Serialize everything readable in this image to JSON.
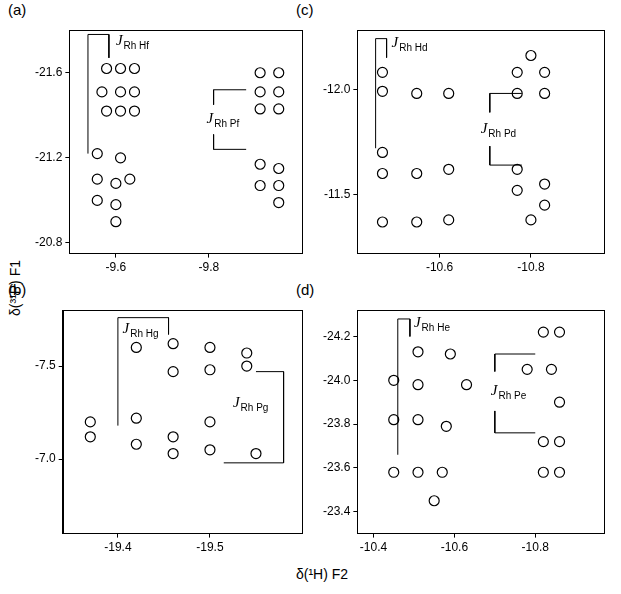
{
  "x_label": "δ(¹H) F2",
  "y_label": "δ(³¹P) F1",
  "chart_data": [
    {
      "type": "scatter",
      "panel": "(a)",
      "color": "#000000",
      "marker": "circle",
      "grid": false,
      "xlim": [
        -9.5,
        -10.0
      ],
      "xticks": [
        -9.6,
        -9.8
      ],
      "ylim": [
        -20.75,
        -21.8
      ],
      "yticks": [
        -21.6,
        -21.2,
        -20.8
      ],
      "values": [
        [
          -9.58,
          -21.62
        ],
        [
          -9.61,
          -21.62
        ],
        [
          -9.64,
          -21.62
        ],
        [
          -9.57,
          -21.51
        ],
        [
          -9.61,
          -21.51
        ],
        [
          -9.64,
          -21.51
        ],
        [
          -9.58,
          -21.42
        ],
        [
          -9.61,
          -21.42
        ],
        [
          -9.64,
          -21.42
        ],
        [
          -9.91,
          -21.6
        ],
        [
          -9.95,
          -21.6
        ],
        [
          -9.91,
          -21.51
        ],
        [
          -9.95,
          -21.51
        ],
        [
          -9.91,
          -21.43
        ],
        [
          -9.95,
          -21.43
        ],
        [
          -9.56,
          -21.22
        ],
        [
          -9.61,
          -21.2
        ],
        [
          -9.56,
          -21.1
        ],
        [
          -9.6,
          -21.08
        ],
        [
          -9.63,
          -21.1
        ],
        [
          -9.56,
          -21.0
        ],
        [
          -9.6,
          -20.98
        ],
        [
          -9.6,
          -20.9
        ],
        [
          -9.91,
          -21.17
        ],
        [
          -9.95,
          -21.15
        ],
        [
          -9.91,
          -21.07
        ],
        [
          -9.95,
          -21.07
        ],
        [
          -9.95,
          -20.99
        ]
      ],
      "brackets": [
        [
          [
            -9.54,
            -21.22
          ],
          [
            -9.54,
            -21.78
          ],
          [
            -9.585,
            -21.78
          ],
          [
            -9.585,
            -21.67
          ]
        ],
        [
          [
            -9.88,
            -21.52
          ],
          [
            -9.81,
            -21.52
          ],
          [
            -9.81,
            -21.45
          ]
        ],
        [
          [
            -9.81,
            -21.31
          ],
          [
            -9.81,
            -21.24
          ],
          [
            -9.88,
            -21.24
          ]
        ]
      ],
      "annotations": [
        {
          "text": "J",
          "subscript": "Rh Hf",
          "x": -9.6,
          "y": -21.75
        },
        {
          "text": "J",
          "subscript": "Rh Pf",
          "x": -9.795,
          "y": -21.38
        }
      ]
    },
    {
      "type": "scatter",
      "panel": "(b)",
      "color": "#000000",
      "marker": "circle",
      "grid": false,
      "xlim": [
        -19.34,
        -19.6
      ],
      "xticks": [
        -19.4,
        -19.5
      ],
      "ylim": [
        -6.6,
        -7.8
      ],
      "yticks": [
        -7.5,
        {
          "value": -7,
          "label": "-7.0"
        }
      ],
      "values": [
        [
          -19.42,
          -7.6
        ],
        [
          -19.46,
          -7.62
        ],
        [
          -19.46,
          -7.47
        ],
        [
          -19.5,
          -7.6
        ],
        [
          -19.5,
          -7.48
        ],
        [
          -19.54,
          -7.57
        ],
        [
          -19.54,
          -7.5
        ],
        [
          -19.37,
          -7.2
        ],
        [
          -19.37,
          -7.12
        ],
        [
          -19.42,
          -7.22
        ],
        [
          -19.42,
          -7.08
        ],
        [
          -19.46,
          -7.12
        ],
        [
          -19.46,
          -7.03
        ],
        [
          -19.5,
          -7.2
        ],
        [
          -19.5,
          -7.05
        ],
        [
          -19.55,
          -7.03
        ]
      ],
      "brackets": [
        [
          [
            -19.4,
            -7.18
          ],
          [
            -19.4,
            -7.76
          ],
          [
            -19.455,
            -7.76
          ],
          [
            -19.455,
            -7.67
          ]
        ],
        [
          [
            -19.55,
            -7.47
          ],
          [
            -19.58,
            -7.47
          ],
          [
            -19.58,
            -6.98
          ],
          [
            -19.515,
            -6.98
          ]
        ]
      ],
      "annotations": [
        {
          "text": "J",
          "subscript": "Rh Hg",
          "x": -19.405,
          "y": -7.7
        },
        {
          "text": "J",
          "subscript": "Rh Pg",
          "x": -19.525,
          "y": -7.3
        }
      ]
    },
    {
      "type": "scatter",
      "panel": "(c)",
      "color": "#000000",
      "marker": "circle",
      "grid": false,
      "xlim": [
        -10.42,
        -10.96
      ],
      "xticks": [
        -10.6,
        -10.8
      ],
      "ylim": [
        -11.22,
        -12.28
      ],
      "yticks": [
        {
          "value": -12,
          "label": "-12.0"
        },
        -11.5
      ],
      "values": [
        [
          -10.475,
          -12.08
        ],
        [
          -10.475,
          -11.99
        ],
        [
          -10.55,
          -11.98
        ],
        [
          -10.62,
          -11.98
        ],
        [
          -10.77,
          -12.08
        ],
        [
          -10.77,
          -11.98
        ],
        [
          -10.83,
          -12.08
        ],
        [
          -10.83,
          -11.98
        ],
        [
          -10.8,
          -12.16
        ],
        [
          -10.475,
          -11.7
        ],
        [
          -10.475,
          -11.6
        ],
        [
          -10.475,
          -11.37
        ],
        [
          -10.55,
          -11.6
        ],
        [
          -10.55,
          -11.37
        ],
        [
          -10.62,
          -11.62
        ],
        [
          -10.62,
          -11.38
        ],
        [
          -10.77,
          -11.62
        ],
        [
          -10.77,
          -11.52
        ],
        [
          -10.83,
          -11.55
        ],
        [
          -10.83,
          -11.45
        ],
        [
          -10.8,
          -11.38
        ]
      ],
      "brackets": [
        [
          [
            -10.46,
            -11.72
          ],
          [
            -10.46,
            -12.24
          ],
          [
            -10.484,
            -12.24
          ],
          [
            -10.484,
            -12.15
          ]
        ],
        [
          [
            -10.78,
            -11.98
          ],
          [
            -10.71,
            -11.98
          ],
          [
            -10.71,
            -11.89
          ]
        ],
        [
          [
            -10.71,
            -11.73
          ],
          [
            -10.71,
            -11.64
          ],
          [
            -10.78,
            -11.64
          ]
        ]
      ],
      "annotations": [
        {
          "text": "J",
          "subscript": "Rh Hd",
          "x": -10.495,
          "y": -12.22
        },
        {
          "text": "J",
          "subscript": "Rh Pd",
          "x": -10.69,
          "y": -11.81
        }
      ]
    },
    {
      "type": "scatter",
      "panel": "(d)",
      "color": "#000000",
      "marker": "circle",
      "grid": false,
      "xlim": [
        -10.36,
        -10.97
      ],
      "xticks": [
        -10.4,
        -10.6,
        -10.8
      ],
      "ylim": [
        -23.3,
        -24.32
      ],
      "yticks": [
        -24.2,
        {
          "value": -24,
          "label": "-24.0"
        },
        -23.8,
        -23.6,
        -23.4
      ],
      "values": [
        [
          -10.51,
          -24.13
        ],
        [
          -10.45,
          -24.0
        ],
        [
          -10.51,
          -23.98
        ],
        [
          -10.45,
          -23.82
        ],
        [
          -10.51,
          -23.82
        ],
        [
          -10.45,
          -23.58
        ],
        [
          -10.51,
          -23.58
        ],
        [
          -10.57,
          -23.58
        ],
        [
          -10.59,
          -24.12
        ],
        [
          -10.63,
          -23.98
        ],
        [
          -10.58,
          -23.79
        ],
        [
          -10.55,
          -23.45
        ],
        [
          -10.82,
          -24.22
        ],
        [
          -10.86,
          -24.22
        ],
        [
          -10.78,
          -24.05
        ],
        [
          -10.84,
          -24.05
        ],
        [
          -10.86,
          -23.9
        ],
        [
          -10.82,
          -23.72
        ],
        [
          -10.86,
          -23.72
        ],
        [
          -10.82,
          -23.58
        ],
        [
          -10.86,
          -23.58
        ]
      ],
      "brackets": [
        [
          [
            -10.46,
            -23.66
          ],
          [
            -10.46,
            -24.28
          ],
          [
            -10.49,
            -24.28
          ],
          [
            -10.49,
            -24.2
          ]
        ],
        [
          [
            -10.8,
            -24.12
          ],
          [
            -10.7,
            -24.12
          ],
          [
            -10.7,
            -24.04
          ]
        ],
        [
          [
            -10.7,
            -23.86
          ],
          [
            -10.7,
            -23.76
          ],
          [
            -10.8,
            -23.76
          ]
        ]
      ],
      "annotations": [
        {
          "text": "J",
          "subscript": "Rh He",
          "x": -10.5,
          "y": -24.26
        },
        {
          "text": "J",
          "subscript": "Rh Pe",
          "x": -10.69,
          "y": -23.95
        }
      ]
    }
  ]
}
